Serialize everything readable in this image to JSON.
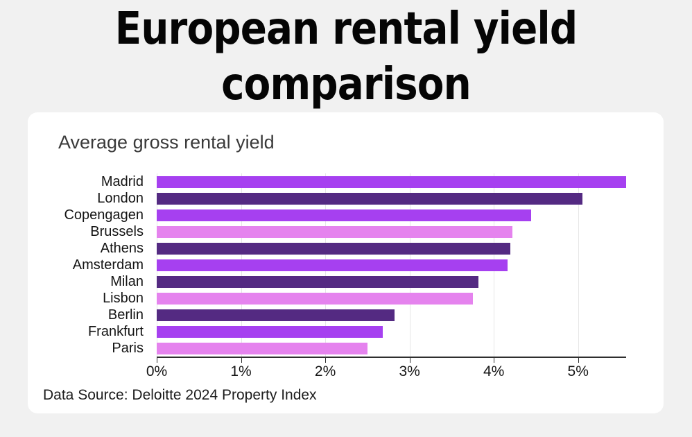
{
  "page": {
    "background_color": "#f1f1f1",
    "title": "European rental yield comparison"
  },
  "card": {
    "background_color": "#ffffff",
    "subtitle": "Average gross rental yield",
    "source": "Data Source: Deloitte 2024 Property Index"
  },
  "chart_data": {
    "type": "bar",
    "orientation": "horizontal",
    "title": "Average gross rental yield",
    "categories": [
      "Madrid",
      "London",
      "Copengagen",
      "Brussels",
      "Athens",
      "Amsterdam",
      "Milan",
      "Lisbon",
      "Berlin",
      "Frankfurt",
      "Paris"
    ],
    "values": [
      5.57,
      5.05,
      4.44,
      4.22,
      4.2,
      4.16,
      3.82,
      3.75,
      2.82,
      2.68,
      2.5
    ],
    "unit": "%",
    "bar_colors": [
      "#a640f0",
      "#542a82",
      "#a640f0",
      "#e583ee",
      "#542a82",
      "#a640f0",
      "#542a82",
      "#e583ee",
      "#542a82",
      "#a640f0",
      "#e583ee"
    ],
    "palette": {
      "vivid_purple": "#a640f0",
      "dark_purple": "#542a82",
      "light_orchid": "#e583ee"
    },
    "xlim": [
      0,
      5.57
    ],
    "x_ticks": [
      {
        "value": 0,
        "label": "0%"
      },
      {
        "value": 1,
        "label": "1%"
      },
      {
        "value": 2,
        "label": "2%"
      },
      {
        "value": 3,
        "label": "3%"
      },
      {
        "value": 4,
        "label": "4%"
      },
      {
        "value": 5,
        "label": "5%"
      }
    ],
    "grid": true,
    "gridline_color": "#e6e6e6",
    "axis_line_color": "#2f2f2f",
    "legend": "none",
    "source": "Data Source: Deloitte 2024 Property Index"
  }
}
